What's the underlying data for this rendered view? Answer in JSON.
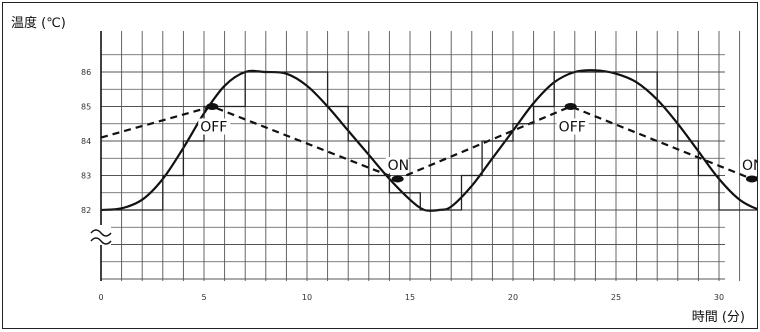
{
  "chart_data": {
    "type": "line",
    "title": "",
    "ylabel": "温度 (℃)",
    "xlabel": "時間 (分)",
    "xlim": [
      0,
      34.5
    ],
    "ylim": [
      79,
      87
    ],
    "x_ticks": [
      {
        "v": 0,
        "label": "0"
      },
      {
        "v": 5,
        "label": "5"
      },
      {
        "v": 10,
        "label": "10"
      },
      {
        "v": 15,
        "label": "15"
      },
      {
        "v": 20,
        "label": "20"
      },
      {
        "v": 25,
        "label": "25"
      },
      {
        "v": 30,
        "label": "30"
      }
    ],
    "y_ticks": [
      {
        "v": 82,
        "label": "82"
      },
      {
        "v": 83,
        "label": "83"
      },
      {
        "v": 84,
        "label": "84"
      },
      {
        "v": 85,
        "label": "85"
      },
      {
        "v": 86,
        "label": "86"
      }
    ],
    "grid": true,
    "axis_break": true,
    "series": [
      {
        "style": "solid-curve",
        "x": [
          0,
          1,
          2,
          3,
          4,
          5,
          6,
          7,
          8,
          9,
          10,
          11,
          12,
          13,
          14,
          15,
          15.7,
          16.4,
          17,
          18,
          19,
          20,
          21,
          22,
          23,
          24,
          25,
          26,
          27,
          28,
          29,
          30,
          31,
          32,
          32.5,
          33,
          33.5,
          34,
          34.4
        ],
        "y": [
          82,
          82.05,
          82.3,
          82.9,
          83.8,
          84.8,
          85.6,
          86,
          86,
          85.95,
          85.6,
          85,
          84.3,
          83.6,
          82.9,
          82.3,
          82,
          82,
          82.1,
          82.7,
          83.5,
          84.3,
          85.1,
          85.7,
          86,
          86.05,
          85.95,
          85.7,
          85.2,
          84.5,
          83.7,
          82.9,
          82.3,
          82,
          82,
          82.05,
          82,
          82.1,
          82.3
        ]
      },
      {
        "style": "dashed",
        "x": [
          0,
          5.4,
          14.4,
          22.8,
          31.6,
          34.4
        ],
        "y": [
          84.1,
          85,
          82.9,
          85,
          82.9,
          83.4
        ]
      },
      {
        "style": "solid-step",
        "x": [
          0,
          3,
          3,
          4,
          4,
          5,
          5,
          7,
          7,
          11,
          11,
          12,
          12,
          13,
          13,
          14,
          14,
          15.5,
          15.5,
          17.5,
          17.5,
          18.5,
          18.5,
          20,
          20,
          21,
          21,
          22,
          22,
          27,
          27,
          28,
          28,
          29,
          29,
          30,
          30,
          32,
          32
        ],
        "y": [
          82,
          82,
          83,
          83,
          84,
          84,
          85,
          85,
          86,
          86,
          85,
          85,
          84,
          84,
          83,
          83,
          82.5,
          82.5,
          82,
          82,
          83,
          83,
          84,
          84,
          84.5,
          84.5,
          85,
          85,
          86,
          86,
          85,
          85,
          84,
          84,
          83,
          83,
          82,
          82,
          82.3
        ]
      }
    ],
    "annotations": [
      {
        "text": "OFF",
        "x": 5.4,
        "y": 85
      },
      {
        "text": "ON",
        "x": 14.4,
        "y": 82.9
      },
      {
        "text": "OFF",
        "x": 22.8,
        "y": 85
      },
      {
        "text": "ON",
        "x": 31.6,
        "y": 82.9
      }
    ]
  }
}
